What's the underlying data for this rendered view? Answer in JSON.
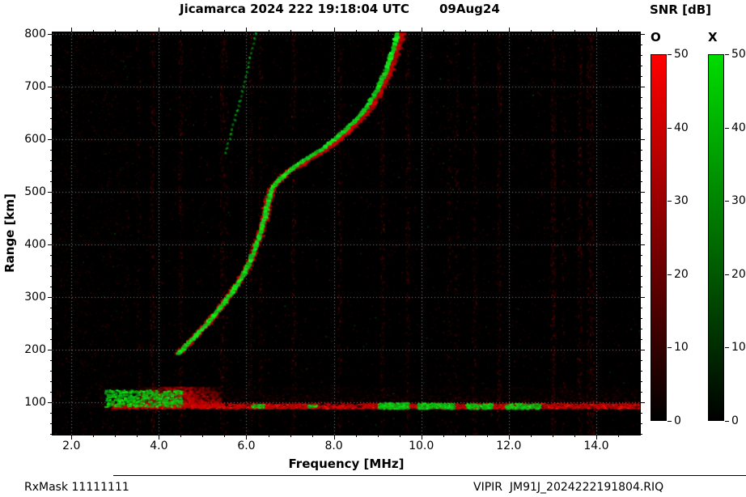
{
  "header": {
    "title": "Jicamarca 2024 222 19:18:04 UTC",
    "date": "09Aug24",
    "colorbar_title": "SNR [dB]"
  },
  "footer": {
    "rx_mask": "RxMask 11111111",
    "file": "VIPIR  JM91J_2024222191804.RIQ"
  },
  "chart_data": {
    "type": "heatmap",
    "title": "Jicamarca 2024 222 19:18:04 UTC",
    "subtitle": "09Aug24",
    "xlabel": "Frequency [MHz]",
    "ylabel": "Range [km]",
    "xlim": [
      1.57,
      15.0
    ],
    "ylim": [
      38,
      803
    ],
    "x_ticks": [
      2,
      4,
      6,
      8,
      10,
      12,
      14
    ],
    "x_tick_labels": [
      "2.0",
      "4.0",
      "6.0",
      "8.0",
      "10.0",
      "12.0",
      "14.0"
    ],
    "x_minor_step": 0.5,
    "y_ticks": [
      100,
      200,
      300,
      400,
      500,
      600,
      700,
      800
    ],
    "y_minor_step": 20,
    "grid": true,
    "background": "#000000",
    "colorbars": [
      {
        "mode": "O",
        "title": "SNR [dB]",
        "bottom_color": "#000000",
        "top_color": "#ff0000",
        "min": 0,
        "max": 50,
        "ticks": [
          0,
          10,
          20,
          30,
          40,
          50
        ]
      },
      {
        "mode": "X",
        "title": "SNR [dB]",
        "bottom_color": "#000000",
        "top_color": "#00dc00",
        "min": 0,
        "max": 50,
        "ticks": [
          0,
          10,
          20,
          30,
          40,
          50
        ]
      }
    ],
    "series": [
      {
        "name": "F-region echo trace (O and X modes overlapped)",
        "type": "trace",
        "points_mhz_km": [
          [
            4.45,
            192
          ],
          [
            4.6,
            205
          ],
          [
            4.8,
            222
          ],
          [
            5.0,
            240
          ],
          [
            5.2,
            258
          ],
          [
            5.4,
            278
          ],
          [
            5.6,
            300
          ],
          [
            5.8,
            325
          ],
          [
            6.0,
            352
          ],
          [
            6.15,
            382
          ],
          [
            6.3,
            415
          ],
          [
            6.42,
            450
          ],
          [
            6.5,
            480
          ],
          [
            6.58,
            505
          ],
          [
            6.75,
            522
          ],
          [
            6.95,
            538
          ],
          [
            7.2,
            552
          ],
          [
            7.5,
            568
          ],
          [
            7.8,
            583
          ],
          [
            8.05,
            600
          ],
          [
            8.3,
            618
          ],
          [
            8.55,
            638
          ],
          [
            8.75,
            658
          ],
          [
            8.95,
            682
          ],
          [
            9.1,
            708
          ],
          [
            9.25,
            735
          ],
          [
            9.35,
            762
          ],
          [
            9.45,
            790
          ],
          [
            9.5,
            803
          ]
        ]
      },
      {
        "name": "faint second echo trace",
        "type": "trace-dotted",
        "points_mhz_km": [
          [
            5.52,
            573
          ],
          [
            5.62,
            603
          ],
          [
            5.72,
            633
          ],
          [
            5.82,
            663
          ],
          [
            5.92,
            698
          ],
          [
            6.02,
            733
          ],
          [
            6.12,
            766
          ],
          [
            6.22,
            803
          ]
        ]
      },
      {
        "name": "E-region echoes",
        "type": "band",
        "freq_range_mhz": [
          2.6,
          15.0
        ],
        "range_km": [
          85,
          130
        ],
        "core_range_km": [
          88,
          98
        ],
        "red_blob": {
          "f": [
            3.5,
            5.4
          ],
          "r": [
            92,
            130
          ]
        },
        "green_patches": [
          {
            "f": [
              2.75,
              4.5
            ],
            "r": [
              92,
              124
            ],
            "n": 650
          },
          {
            "f": [
              9.0,
              9.7
            ],
            "r": [
              88,
              100
            ],
            "n": 240
          },
          {
            "f": [
              9.9,
              10.75
            ],
            "r": [
              88,
              99
            ],
            "n": 240
          },
          {
            "f": [
              11.0,
              11.6
            ],
            "r": [
              88,
              98
            ],
            "n": 150
          },
          {
            "f": [
              11.9,
              12.7
            ],
            "r": [
              88,
              98
            ],
            "n": 170
          },
          {
            "f": [
              6.1,
              6.4
            ],
            "r": [
              90,
              97
            ],
            "n": 35
          },
          {
            "f": [
              7.35,
              7.6
            ],
            "r": [
              90,
              96
            ],
            "n": 25
          }
        ]
      }
    ]
  }
}
